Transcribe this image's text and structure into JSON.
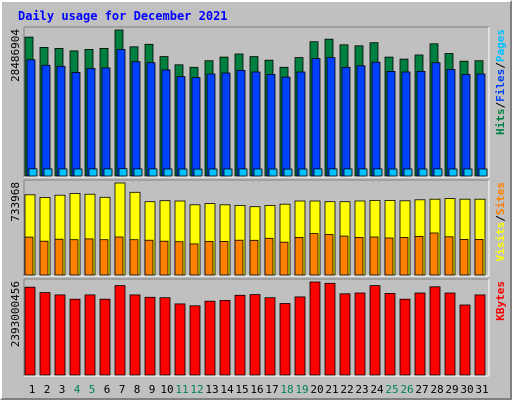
{
  "chart_data": {
    "type": "bar",
    "title": "Daily usage for December 2021",
    "categories": [
      "1",
      "2",
      "3",
      "4",
      "5",
      "6",
      "7",
      "8",
      "9",
      "10",
      "11",
      "12",
      "13",
      "14",
      "15",
      "16",
      "17",
      "18",
      "19",
      "20",
      "21",
      "22",
      "23",
      "24",
      "25",
      "26",
      "27",
      "28",
      "29",
      "30",
      "31"
    ],
    "weekend_days": [
      "4",
      "5",
      "11",
      "12",
      "18",
      "19",
      "25",
      "26"
    ],
    "panels": [
      {
        "name": "Pages / Files / Hits",
        "max_label": "28486904",
        "ylim": [
          0,
          28486904
        ],
        "series": [
          {
            "name": "Hits",
            "color": "#008040",
            "values": [
              27100000,
              25100000,
              24900000,
              24400000,
              24700000,
              24900000,
              28486904,
              25200000,
              25700000,
              23300000,
              21700000,
              21200000,
              22500000,
              23200000,
              23800000,
              23300000,
              22600000,
              21200000,
              23100000,
              26200000,
              26700000,
              25600000,
              25400000,
              26000000,
              23200000,
              22800000,
              23600000,
              25800000,
              23900000,
              22400000,
              22500000
            ]
          },
          {
            "name": "Files",
            "color": "#0040ff",
            "values": [
              22700000,
              21600000,
              21400000,
              20200000,
              21000000,
              21100000,
              24700000,
              22300000,
              22100000,
              20700000,
              19400000,
              19200000,
              19900000,
              20100000,
              20600000,
              20300000,
              19800000,
              19300000,
              20300000,
              22900000,
              23100000,
              21200000,
              21500000,
              22200000,
              20400000,
              20300000,
              20400000,
              22100000,
              20800000,
              19800000,
              19900000
            ]
          },
          {
            "name": "Pages",
            "color": "#00c0ff",
            "values": [
              1400000,
              1380000,
              1390000,
              1370000,
              1390000,
              1380000,
              1420000,
              1390000,
              1380000,
              1370000,
              1360000,
              1350000,
              1360000,
              1370000,
              1380000,
              1370000,
              1360000,
              1350000,
              1360000,
              1380000,
              1390000,
              1380000,
              1380000,
              1390000,
              1370000,
              1370000,
              1370000,
              1390000,
              1370000,
              1360000,
              1360000
            ]
          }
        ],
        "legend": [
          "Pages",
          "/",
          "Files",
          "/",
          "Hits"
        ]
      },
      {
        "name": "Sites / Visits",
        "max_label": "733968",
        "ylim": [
          0,
          733968
        ],
        "series": [
          {
            "name": "Visits",
            "color": "#ffff00",
            "values": [
              640000,
              618000,
              637000,
              650000,
              645000,
              620000,
              733968,
              660000,
              585000,
              593000,
              590000,
              560000,
              570000,
              560000,
              555000,
              545000,
              555000,
              565000,
              590000,
              590000,
              585000,
              585000,
              590000,
              595000,
              595000,
              592000,
              600000,
              605000,
              610000,
              605000,
              605000
            ]
          },
          {
            "name": "Sites",
            "color": "#ff8000",
            "values": [
              302000,
              270000,
              286000,
              282000,
              288000,
              282000,
              303000,
              282000,
              278000,
              270000,
              266000,
              248000,
              268000,
              268000,
              278000,
              277000,
              293000,
              262000,
              300000,
              330000,
              323000,
              310000,
              300000,
              303000,
              295000,
              300000,
              308000,
              335000,
              305000,
              284000,
              284000
            ]
          }
        ],
        "legend": [
          "Sites",
          "/",
          "Visits"
        ]
      },
      {
        "name": "KBytes",
        "max_label": "2393000456",
        "ylim": [
          0,
          2393000456
        ],
        "series": [
          {
            "name": "KBytes",
            "color": "#ff0000",
            "values": [
              2260000000,
              2120000000,
              2060000000,
              1950000000,
              2060000000,
              1950000000,
              2300000000,
              2060000000,
              2000000000,
              1990000000,
              1830000000,
              1780000000,
              1900000000,
              1920000000,
              2050000000,
              2070000000,
              1990000000,
              1840000000,
              2010000000,
              2393000456,
              2360000000,
              2090000000,
              2110000000,
              2300000000,
              2100000000,
              1950000000,
              2110000000,
              2270000000,
              2110000000,
              1800000000,
              2060000000
            ]
          }
        ],
        "legend": [
          "KBytes"
        ]
      }
    ],
    "legend_placement": "right",
    "grid": false
  }
}
